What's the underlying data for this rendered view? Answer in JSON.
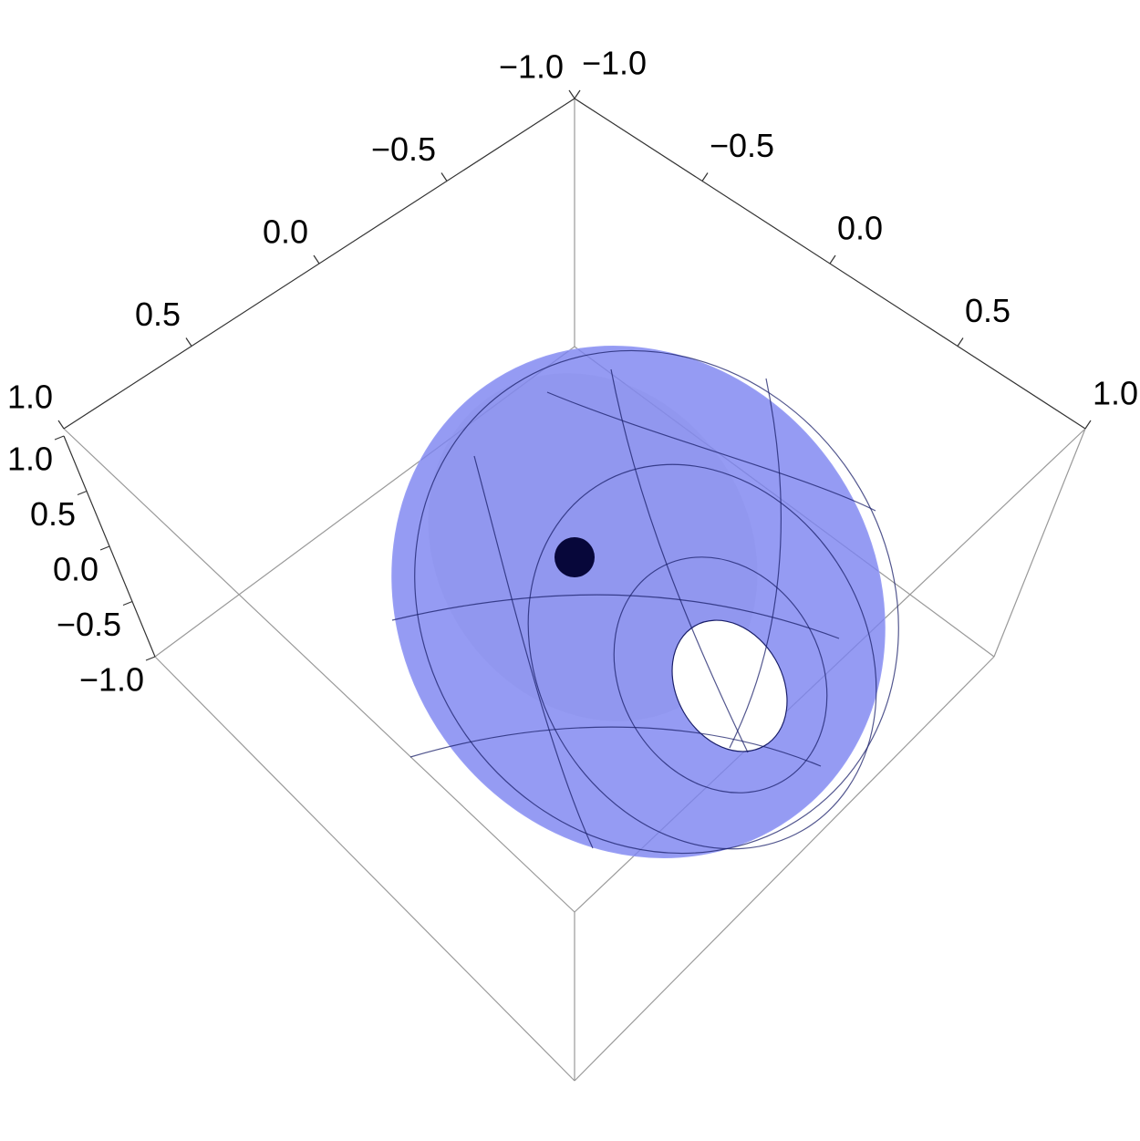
{
  "chart_data": {
    "type": "surface3d",
    "xlim": [
      -1,
      1
    ],
    "xticks": [
      {
        "value": -1,
        "label": "−1.0"
      },
      {
        "value": -0.5,
        "label": "−0.5"
      },
      {
        "value": 0,
        "label": "0.0"
      },
      {
        "value": 0.5,
        "label": "0.5"
      },
      {
        "value": 1,
        "label": "1.0"
      }
    ],
    "ylim": [
      -1,
      1
    ],
    "yticks": [
      {
        "value": -1,
        "label": "−1.0"
      },
      {
        "value": -0.5,
        "label": "−0.5"
      },
      {
        "value": 0,
        "label": "0.0"
      },
      {
        "value": 0.5,
        "label": "0.5"
      },
      {
        "value": 1,
        "label": "1.0"
      }
    ],
    "zlim": [
      -1,
      1
    ],
    "zticks": [
      {
        "value": -1,
        "label": "−1.0"
      },
      {
        "value": -0.5,
        "label": "−0.5"
      },
      {
        "value": 0,
        "label": "0.0"
      },
      {
        "value": 0.5,
        "label": "0.5"
      },
      {
        "value": 1,
        "label": "1.0"
      }
    ],
    "color": "#7b82f0"
  }
}
